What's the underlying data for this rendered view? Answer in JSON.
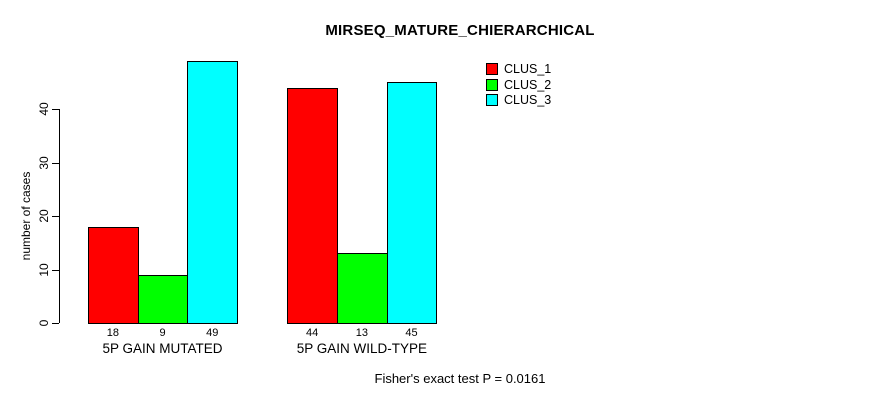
{
  "chart_data": {
    "type": "bar",
    "title": "MIRSEQ_MATURE_CHIERARCHICAL",
    "categories": [
      "5P GAIN MUTATED",
      "5P GAIN WILD-TYPE"
    ],
    "series": [
      {
        "name": "CLUS_1",
        "color": "#FF0000",
        "values": [
          18,
          44
        ]
      },
      {
        "name": "CLUS_2",
        "color": "#00FF00",
        "values": [
          9,
          13
        ]
      },
      {
        "name": "CLUS_3",
        "color": "#00FFFF",
        "values": [
          49,
          45
        ]
      }
    ],
    "xlabel": "",
    "ylabel": "number of cases",
    "ylim": [
      0,
      52
    ],
    "yticks": [
      0,
      10,
      20,
      30,
      40
    ],
    "bar_value_labels_shown": true,
    "grid": false,
    "legend_position": "top-right-inside",
    "annotation": "Fisher's exact test P = 0.0161"
  }
}
